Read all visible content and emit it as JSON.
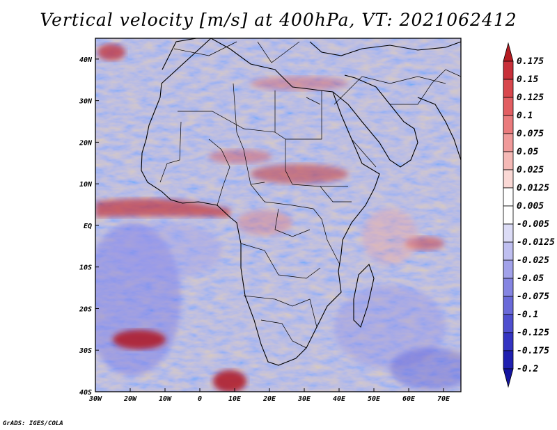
{
  "title": "Vertical velocity [m/s] at 400hPa, VT: 2021062412",
  "credit": "GrADS: IGES/COLA",
  "map": {
    "region": "Africa",
    "lon_range": [
      -30,
      75
    ],
    "lat_range": [
      -40,
      45
    ],
    "lon_ticks": [
      "30W",
      "20W",
      "10W",
      "0",
      "10E",
      "20E",
      "30E",
      "40E",
      "50E",
      "60E",
      "70E"
    ],
    "lat_ticks": [
      "40N",
      "30N",
      "20N",
      "10N",
      "EQ",
      "10S",
      "20S",
      "30S",
      "40S"
    ]
  },
  "colorbar": {
    "labels": [
      "0.175",
      "0.15",
      "0.125",
      "0.1",
      "0.075",
      "0.05",
      "0.025",
      "0.0125",
      "0.005",
      "-0.005",
      "-0.0125",
      "-0.025",
      "-0.05",
      "-0.075",
      "-0.1",
      "-0.125",
      "-0.175",
      "-0.2"
    ],
    "colors": [
      "#b51c22",
      "#c8303a",
      "#d8474d",
      "#e25e62",
      "#ea7b7d",
      "#f09a9a",
      "#f5b9b6",
      "#fad8d5",
      "#ffffff",
      "#ffffff",
      "#dcdcf6",
      "#bfbff0",
      "#a2a2ea",
      "#8585e2",
      "#6a6ad9",
      "#4f4fcf",
      "#3434c2",
      "#2020b0",
      "#1414a0"
    ]
  }
}
